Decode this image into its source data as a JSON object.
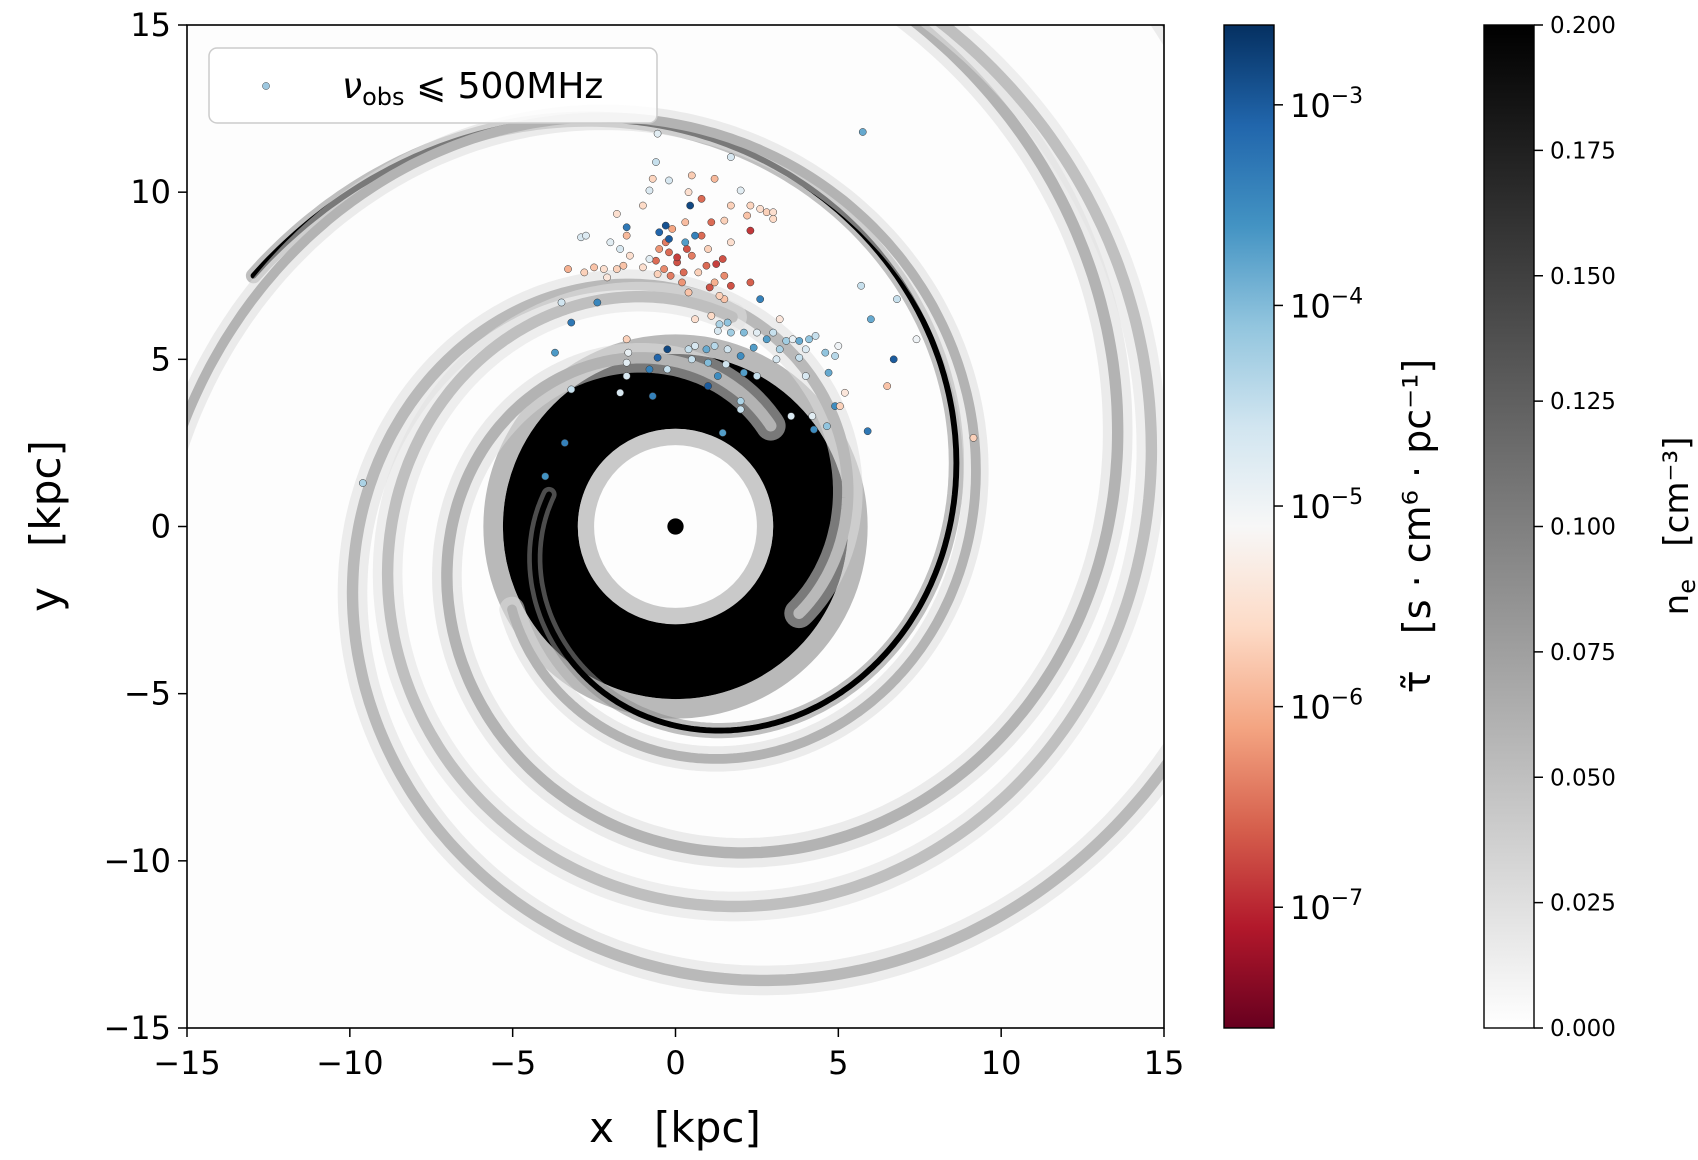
{
  "chart_data": {
    "type": "scatter",
    "xlabel": "x   [kpc]",
    "ylabel": "y   [kpc]",
    "xlim": [
      -15,
      15
    ],
    "ylim": [
      -15,
      15
    ],
    "xticks": [
      -15,
      -10,
      -5,
      0,
      5,
      10,
      15
    ],
    "yticks": [
      -15,
      -10,
      -5,
      0,
      5,
      10,
      15
    ],
    "xtick_labels": [
      "−15",
      "−10",
      "−5",
      "0",
      "5",
      "10",
      "15"
    ],
    "ytick_labels": [
      "−15",
      "−10",
      "−5",
      "0",
      "5",
      "10",
      "15"
    ],
    "legend": {
      "placement": "top-left",
      "label_main": "ν",
      "label_sub": "obs",
      "label_rest": " ⩽ 500MHz"
    },
    "background": {
      "description_units": "electron density n_e [cm^-3]",
      "core": {
        "x": 0,
        "y": 0,
        "radius": 0.25,
        "value": 0.2
      },
      "inner_hole_radius": 3.0,
      "disk_outer_radius": 5.3,
      "spiral_arms": [
        {
          "a": 4.0,
          "b": 0.22,
          "theta_start": 2.9,
          "theta_end": 8.9,
          "width": 0.18,
          "strength": 0.2
        },
        {
          "a": 4.2,
          "b": 0.21,
          "theta_start": 0.8,
          "theta_end": 8.0,
          "width": 0.35,
          "strength": 0.06
        },
        {
          "a": 4.6,
          "b": 0.2,
          "theta_start": -0.6,
          "theta_end": 7.2,
          "width": 0.35,
          "strength": 0.055
        },
        {
          "a": 5.6,
          "b": 0.18,
          "theta_start": 3.6,
          "theta_end": 9.8,
          "width": 0.3,
          "strength": 0.06
        },
        {
          "a": 6.5,
          "b": 0.16,
          "theta_start": 1.3,
          "theta_end": 7.7,
          "width": 0.35,
          "strength": 0.05
        }
      ]
    },
    "colorbars": [
      {
        "name": "tau",
        "label": "τ̃   [s · cm⁶ · pc⁻¹]",
        "scale": "log",
        "range": [
          2.5e-08,
          0.0025
        ],
        "ticks": [
          1e-07,
          1e-06,
          1e-05,
          0.0001,
          0.001
        ],
        "tick_labels": [
          {
            "base": "10",
            "exp": "−7"
          },
          {
            "base": "10",
            "exp": "−6"
          },
          {
            "base": "10",
            "exp": "−5"
          },
          {
            "base": "10",
            "exp": "−4"
          },
          {
            "base": "10",
            "exp": "−3"
          }
        ],
        "colormap": [
          "#67001f",
          "#b2182b",
          "#d6604d",
          "#f4a582",
          "#fddbc7",
          "#f7f7f7",
          "#d1e5f0",
          "#92c5de",
          "#4393c3",
          "#2166ac",
          "#053061"
        ]
      },
      {
        "name": "ne",
        "label_main": "n",
        "label_sub": "e",
        "label_rest": "   [cm⁻³]",
        "scale": "linear",
        "range": [
          0.0,
          0.2
        ],
        "ticks": [
          0.0,
          0.025,
          0.05,
          0.075,
          0.1,
          0.125,
          0.15,
          0.175,
          0.2
        ],
        "tick_labels": [
          "0.000",
          "0.025",
          "0.050",
          "0.075",
          "0.100",
          "0.125",
          "0.150",
          "0.175",
          "0.200"
        ]
      }
    ],
    "points": [
      {
        "x": -9.6,
        "y": 1.3,
        "tau": 5e-05
      },
      {
        "x": -4.0,
        "y": 1.5,
        "tau": 0.00025
      },
      {
        "x": -3.4,
        "y": 2.5,
        "tau": 0.0004
      },
      {
        "x": -3.2,
        "y": 4.1,
        "tau": 3e-05
      },
      {
        "x": -3.7,
        "y": 5.2,
        "tau": 0.00022
      },
      {
        "x": -3.2,
        "y": 6.1,
        "tau": 0.0005
      },
      {
        "x": -3.5,
        "y": 6.7,
        "tau": 2.5e-05
      },
      {
        "x": -2.4,
        "y": 6.7,
        "tau": 0.00035
      },
      {
        "x": -3.3,
        "y": 7.7,
        "tau": 1e-06
      },
      {
        "x": -2.8,
        "y": 7.6,
        "tau": 2e-06
      },
      {
        "x": -2.5,
        "y": 7.75,
        "tau": 1.5e-06
      },
      {
        "x": -2.2,
        "y": 7.7,
        "tau": 3e-06
      },
      {
        "x": -2.1,
        "y": 7.45,
        "tau": 4e-06
      },
      {
        "x": -1.8,
        "y": 7.7,
        "tau": 2e-06
      },
      {
        "x": -1.6,
        "y": 7.8,
        "tau": 1.5e-06
      },
      {
        "x": -1.7,
        "y": 8.3,
        "tau": 2e-05
      },
      {
        "x": -1.4,
        "y": 8.1,
        "tau": 3e-06
      },
      {
        "x": -1.5,
        "y": 8.7,
        "tau": 1.2e-06
      },
      {
        "x": -2.0,
        "y": 8.5,
        "tau": 1.5e-05
      },
      {
        "x": -2.9,
        "y": 8.65,
        "tau": 2e-05
      },
      {
        "x": -2.75,
        "y": 8.7,
        "tau": 1.8e-05
      },
      {
        "x": -1.8,
        "y": 9.35,
        "tau": 3e-06
      },
      {
        "x": -1.5,
        "y": 8.95,
        "tau": 0.0005
      },
      {
        "x": -1.0,
        "y": 9.6,
        "tau": 2.5e-06
      },
      {
        "x": -0.8,
        "y": 10.05,
        "tau": 1.8e-05
      },
      {
        "x": -0.7,
        "y": 10.4,
        "tau": 2.2e-06
      },
      {
        "x": -0.6,
        "y": 10.9,
        "tau": 3e-05
      },
      {
        "x": -0.55,
        "y": 11.75,
        "tau": 1.5e-05
      },
      {
        "x": -0.2,
        "y": 10.35,
        "tau": 2e-05
      },
      {
        "x": 0.5,
        "y": 10.5,
        "tau": 1.8e-06
      },
      {
        "x": 0.4,
        "y": 10.0,
        "tau": 3e-06
      },
      {
        "x": 0.8,
        "y": 9.8,
        "tau": 3e-07
      },
      {
        "x": 0.45,
        "y": 9.6,
        "tau": 0.0015
      },
      {
        "x": 1.2,
        "y": 10.4,
        "tau": 1.2e-06
      },
      {
        "x": 1.7,
        "y": 11.05,
        "tau": 2e-05
      },
      {
        "x": 2.0,
        "y": 10.05,
        "tau": 1.5e-05
      },
      {
        "x": 1.7,
        "y": 9.6,
        "tau": 2e-06
      },
      {
        "x": 2.3,
        "y": 9.6,
        "tau": 2.2e-06
      },
      {
        "x": 2.6,
        "y": 9.5,
        "tau": 3e-06
      },
      {
        "x": 2.8,
        "y": 9.4,
        "tau": 2e-06
      },
      {
        "x": 2.2,
        "y": 9.3,
        "tau": 1.5e-06
      },
      {
        "x": 3.0,
        "y": 9.2,
        "tau": 2.5e-06
      },
      {
        "x": 2.3,
        "y": 8.85,
        "tau": 1.3e-07
      },
      {
        "x": 1.5,
        "y": 9.15,
        "tau": 2e-06
      },
      {
        "x": 1.1,
        "y": 9.1,
        "tau": 3e-07
      },
      {
        "x": 0.3,
        "y": 9.1,
        "tau": 1.3e-06
      },
      {
        "x": -0.1,
        "y": 8.9,
        "tau": 8e-07
      },
      {
        "x": -0.3,
        "y": 8.5,
        "tau": 4e-07
      },
      {
        "x": -0.2,
        "y": 8.2,
        "tau": 3e-07
      },
      {
        "x": -0.5,
        "y": 8.3,
        "tau": 6e-07
      },
      {
        "x": -0.6,
        "y": 7.95,
        "tau": 3e-07
      },
      {
        "x": -0.35,
        "y": 7.7,
        "tau": 5e-07
      },
      {
        "x": -0.15,
        "y": 7.5,
        "tau": 4e-07
      },
      {
        "x": 0.05,
        "y": 7.9,
        "tau": 2e-07
      },
      {
        "x": 0.25,
        "y": 7.6,
        "tau": 3e-07
      },
      {
        "x": 0.05,
        "y": 8.05,
        "tau": 1.5e-07
      },
      {
        "x": 0.35,
        "y": 8.3,
        "tau": 2e-07
      },
      {
        "x": 0.5,
        "y": 8.1,
        "tau": 4e-07
      },
      {
        "x": 0.2,
        "y": 7.3,
        "tau": 6e-07
      },
      {
        "x": 0.4,
        "y": 7.0,
        "tau": 1.5e-06
      },
      {
        "x": 0.7,
        "y": 7.6,
        "tau": 2e-06
      },
      {
        "x": 0.95,
        "y": 7.8,
        "tau": 3e-07
      },
      {
        "x": 1.25,
        "y": 7.85,
        "tau": 1.5e-07
      },
      {
        "x": 1.45,
        "y": 8.0,
        "tau": 2e-07
      },
      {
        "x": 1.5,
        "y": 7.5,
        "tau": 5e-07
      },
      {
        "x": 1.05,
        "y": 7.15,
        "tau": 2e-07
      },
      {
        "x": 1.5,
        "y": 6.8,
        "tau": 1.5e-06
      },
      {
        "x": 0.8,
        "y": 8.7,
        "tau": 3e-07
      },
      {
        "x": 1.0,
        "y": 8.3,
        "tau": 2e-06
      },
      {
        "x": 1.7,
        "y": 8.5,
        "tau": 3e-06
      },
      {
        "x": 0.6,
        "y": 8.7,
        "tau": 0.0004
      },
      {
        "x": 0.3,
        "y": 8.5,
        "tau": 0.0002
      },
      {
        "x": -0.2,
        "y": 8.6,
        "tau": 0.001
      },
      {
        "x": -0.3,
        "y": 9.0,
        "tau": 0.0012
      },
      {
        "x": -0.5,
        "y": 8.8,
        "tau": 0.0008
      },
      {
        "x": -0.8,
        "y": 8.0,
        "tau": 1.5e-05
      },
      {
        "x": -1.0,
        "y": 7.75,
        "tau": 3e-06
      },
      {
        "x": -0.55,
        "y": 7.55,
        "tau": 2e-06
      },
      {
        "x": 1.7,
        "y": 7.2,
        "tau": 2e-07
      },
      {
        "x": 2.3,
        "y": 7.3,
        "tau": 2.5e-07
      },
      {
        "x": 1.2,
        "y": 7.3,
        "tau": 1e-06
      },
      {
        "x": 1.35,
        "y": 6.9,
        "tau": 2e-06
      },
      {
        "x": 2.6,
        "y": 6.8,
        "tau": 0.0004
      },
      {
        "x": 3.2,
        "y": 6.2,
        "tau": 4e-06
      },
      {
        "x": 3.0,
        "y": 5.8,
        "tau": 3e-05
      },
      {
        "x": 0.6,
        "y": 6.2,
        "tau": 3e-06
      },
      {
        "x": 1.1,
        "y": 6.3,
        "tau": 2.5e-06
      },
      {
        "x": 1.35,
        "y": 6.05,
        "tau": 5e-05
      },
      {
        "x": 1.6,
        "y": 6.1,
        "tau": 8e-05
      },
      {
        "x": 1.3,
        "y": 5.85,
        "tau": 2e-05
      },
      {
        "x": 1.7,
        "y": 5.8,
        "tau": 6e-05
      },
      {
        "x": 2.1,
        "y": 5.8,
        "tau": 0.0001
      },
      {
        "x": 2.5,
        "y": 5.8,
        "tau": 1.5e-05
      },
      {
        "x": 2.8,
        "y": 5.6,
        "tau": 0.0002
      },
      {
        "x": 3.4,
        "y": 5.55,
        "tau": 6e-05
      },
      {
        "x": 3.6,
        "y": 5.6,
        "tau": 1.2e-05
      },
      {
        "x": 3.8,
        "y": 5.55,
        "tau": 0.00015
      },
      {
        "x": 4.1,
        "y": 5.6,
        "tau": 8e-05
      },
      {
        "x": 4.3,
        "y": 5.7,
        "tau": 3e-05
      },
      {
        "x": 4.0,
        "y": 5.3,
        "tau": 1.8e-05
      },
      {
        "x": 3.8,
        "y": 5.05,
        "tau": 3e-05
      },
      {
        "x": 3.2,
        "y": 5.3,
        "tau": 5e-05
      },
      {
        "x": 3.1,
        "y": 5.0,
        "tau": 2e-05
      },
      {
        "x": 2.4,
        "y": 5.35,
        "tau": 0.0002
      },
      {
        "x": 2.0,
        "y": 5.1,
        "tau": 0.0003
      },
      {
        "x": 1.6,
        "y": 5.3,
        "tau": 2.5e-05
      },
      {
        "x": 1.2,
        "y": 5.4,
        "tau": 4e-05
      },
      {
        "x": 0.95,
        "y": 5.3,
        "tau": 0.00015
      },
      {
        "x": 0.6,
        "y": 5.4,
        "tau": 2e-05
      },
      {
        "x": 0.4,
        "y": 5.3,
        "tau": 3e-05
      },
      {
        "x": -0.25,
        "y": 5.3,
        "tau": 0.0015
      },
      {
        "x": -0.55,
        "y": 5.05,
        "tau": 0.0008
      },
      {
        "x": -1.5,
        "y": 5.6,
        "tau": 2e-06
      },
      {
        "x": -1.45,
        "y": 5.2,
        "tau": 1.2e-05
      },
      {
        "x": -1.5,
        "y": 4.9,
        "tau": 1.5e-05
      },
      {
        "x": -1.5,
        "y": 4.5,
        "tau": 2e-05
      },
      {
        "x": -0.8,
        "y": 4.7,
        "tau": 0.0004
      },
      {
        "x": 0.5,
        "y": 5.0,
        "tau": 3e-05
      },
      {
        "x": 1.0,
        "y": 4.9,
        "tau": 0.0001
      },
      {
        "x": 1.55,
        "y": 4.85,
        "tau": 2.5e-05
      },
      {
        "x": 1.3,
        "y": 4.5,
        "tau": 0.0003
      },
      {
        "x": 2.1,
        "y": 4.6,
        "tau": 0.0002
      },
      {
        "x": 2.5,
        "y": 4.5,
        "tau": 3e-05
      },
      {
        "x": 4.0,
        "y": 4.5,
        "tau": 2e-05
      },
      {
        "x": 4.7,
        "y": 4.6,
        "tau": 0.00015
      },
      {
        "x": 4.9,
        "y": 5.1,
        "tau": 4e-05
      },
      {
        "x": 5.0,
        "y": 5.4,
        "tau": 1e-05
      },
      {
        "x": 4.6,
        "y": 5.2,
        "tau": 8e-05
      },
      {
        "x": 5.2,
        "y": 4.0,
        "tau": 4e-06
      },
      {
        "x": 4.9,
        "y": 3.6,
        "tau": 0.0003
      },
      {
        "x": 5.05,
        "y": 3.6,
        "tau": 2e-06
      },
      {
        "x": 4.2,
        "y": 3.3,
        "tau": 1.5e-05
      },
      {
        "x": 3.55,
        "y": 3.3,
        "tau": 2e-05
      },
      {
        "x": 4.25,
        "y": 2.9,
        "tau": 0.0003
      },
      {
        "x": 4.65,
        "y": 3.0,
        "tau": 8e-05
      },
      {
        "x": 5.9,
        "y": 2.85,
        "tau": 0.0005
      },
      {
        "x": 9.15,
        "y": 2.65,
        "tau": 2e-06
      },
      {
        "x": 6.5,
        "y": 4.2,
        "tau": 1.5e-06
      },
      {
        "x": 6.7,
        "y": 5.0,
        "tau": 0.001
      },
      {
        "x": 7.4,
        "y": 5.6,
        "tau": 1e-05
      },
      {
        "x": 6.0,
        "y": 6.2,
        "tau": 0.00015
      },
      {
        "x": 5.7,
        "y": 7.2,
        "tau": 3e-05
      },
      {
        "x": 6.8,
        "y": 6.8,
        "tau": 3e-05
      },
      {
        "x": 5.75,
        "y": 11.8,
        "tau": 0.00015
      },
      {
        "x": 3.0,
        "y": 9.4,
        "tau": 3e-06
      },
      {
        "x": 2.0,
        "y": 3.75,
        "tau": 5e-05
      },
      {
        "x": 2.0,
        "y": 3.5,
        "tau": 3e-05
      },
      {
        "x": 1.45,
        "y": 2.8,
        "tau": 0.0002
      },
      {
        "x": -1.7,
        "y": 4.0,
        "tau": 2e-05
      },
      {
        "x": -0.7,
        "y": 3.9,
        "tau": 0.0004
      },
      {
        "x": 1.0,
        "y": 4.2,
        "tau": 0.001
      },
      {
        "x": -0.25,
        "y": 4.7,
        "tau": 3e-05
      }
    ]
  }
}
